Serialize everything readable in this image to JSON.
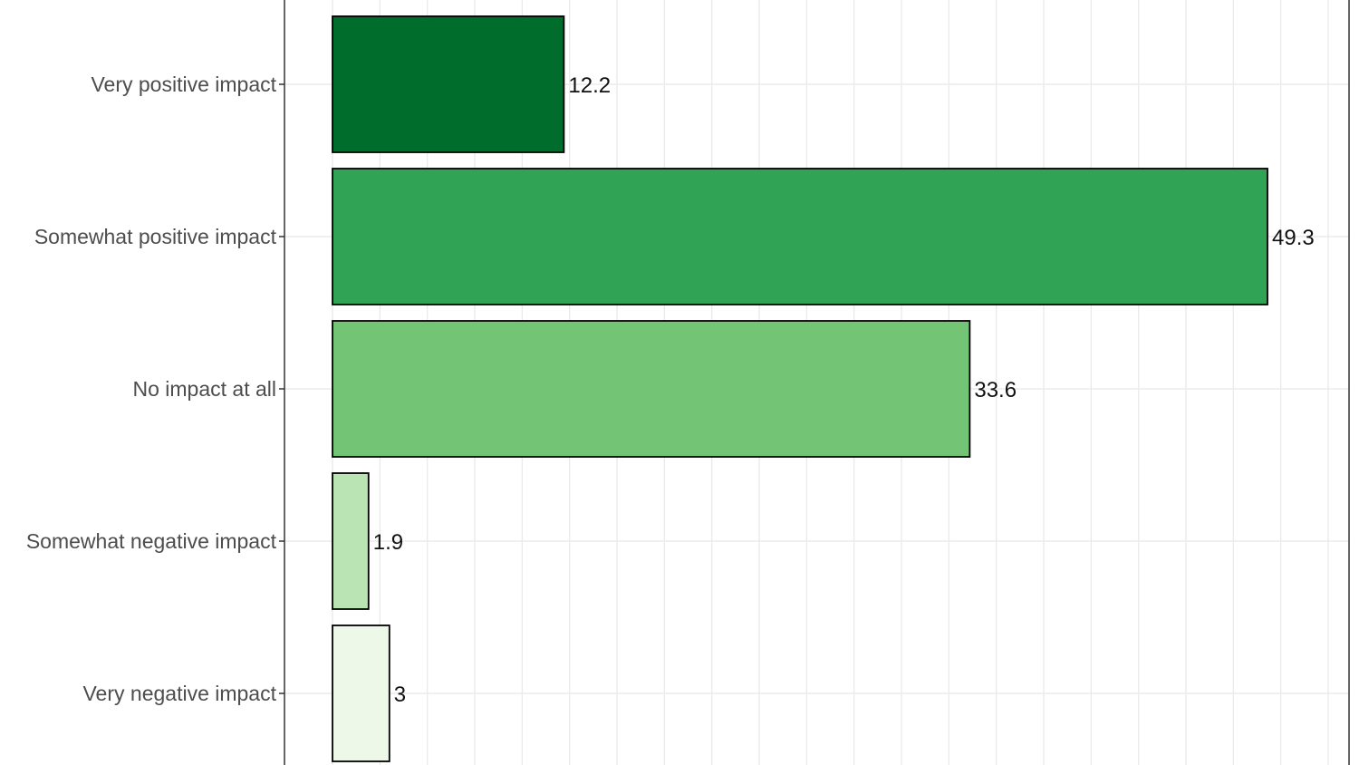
{
  "chart_data": {
    "type": "bar",
    "orientation": "horizontal",
    "categories": [
      "Very positive impact",
      "Somewhat positive impact",
      "No impact at all",
      "Somewhat negative impact",
      "Very negative impact"
    ],
    "values": [
      12.2,
      49.3,
      33.6,
      1.9,
      3
    ],
    "value_labels": [
      "12.2",
      "49.3",
      "33.6",
      "1.9",
      "3"
    ],
    "colors": [
      "#006d2c",
      "#31a354",
      "#74c476",
      "#bae4b3",
      "#edf8e9"
    ],
    "xlim": [
      -2.5,
      53
    ],
    "grid": true,
    "legend": "none",
    "border_color": "#000000",
    "grid_color": "#ebebeb",
    "axis_color": "#333333"
  }
}
